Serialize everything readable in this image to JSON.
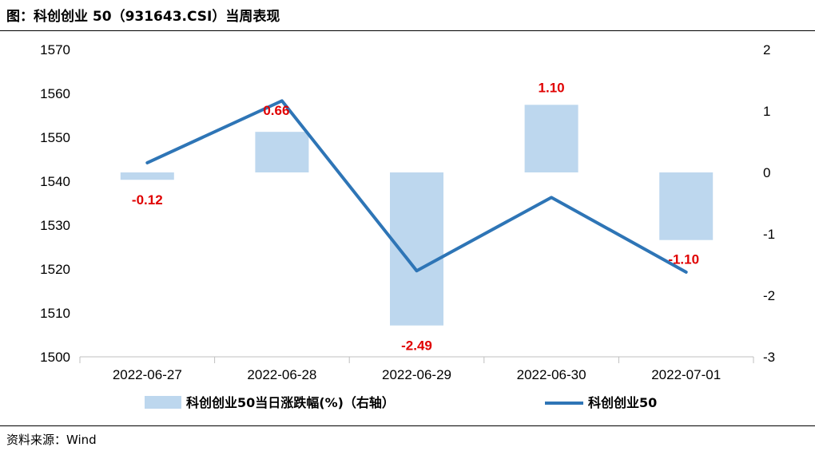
{
  "header": {
    "title": "图：科创创业 50（931643.CSI）当周表现"
  },
  "footer": {
    "source": "资料来源：Wind"
  },
  "colors": {
    "bar": "#bdd7ee",
    "line": "#2e75b6",
    "label": "#e00000",
    "axis": "#bfbfbf"
  },
  "chart_data": {
    "type": "bar",
    "categories": [
      "2022-06-27",
      "2022-06-28",
      "2022-06-29",
      "2022-06-30",
      "2022-07-01"
    ],
    "series": [
      {
        "name": "科创创业50当日涨跌幅(%)（右轴）",
        "type": "bar",
        "axis": "right",
        "values": [
          -0.12,
          0.66,
          -2.49,
          1.1,
          -1.1
        ],
        "labels": [
          "-0.12",
          "0.66",
          "-2.49",
          "1.10",
          "-1.10"
        ]
      },
      {
        "name": "科创创业50",
        "type": "line",
        "axis": "left",
        "values": [
          1544.2,
          1558.3,
          1519.6,
          1536.3,
          1519.3
        ]
      }
    ],
    "left_axis": {
      "ylim": [
        1500,
        1570
      ],
      "ticks": [
        "1500",
        "1510",
        "1520",
        "1530",
        "1540",
        "1550",
        "1560",
        "1570"
      ]
    },
    "right_axis": {
      "ylim": [
        -3,
        2
      ],
      "ticks": [
        "-3",
        "-2",
        "-1",
        "0",
        "1",
        "2"
      ]
    },
    "legend_position": "bottom",
    "grid": false
  }
}
